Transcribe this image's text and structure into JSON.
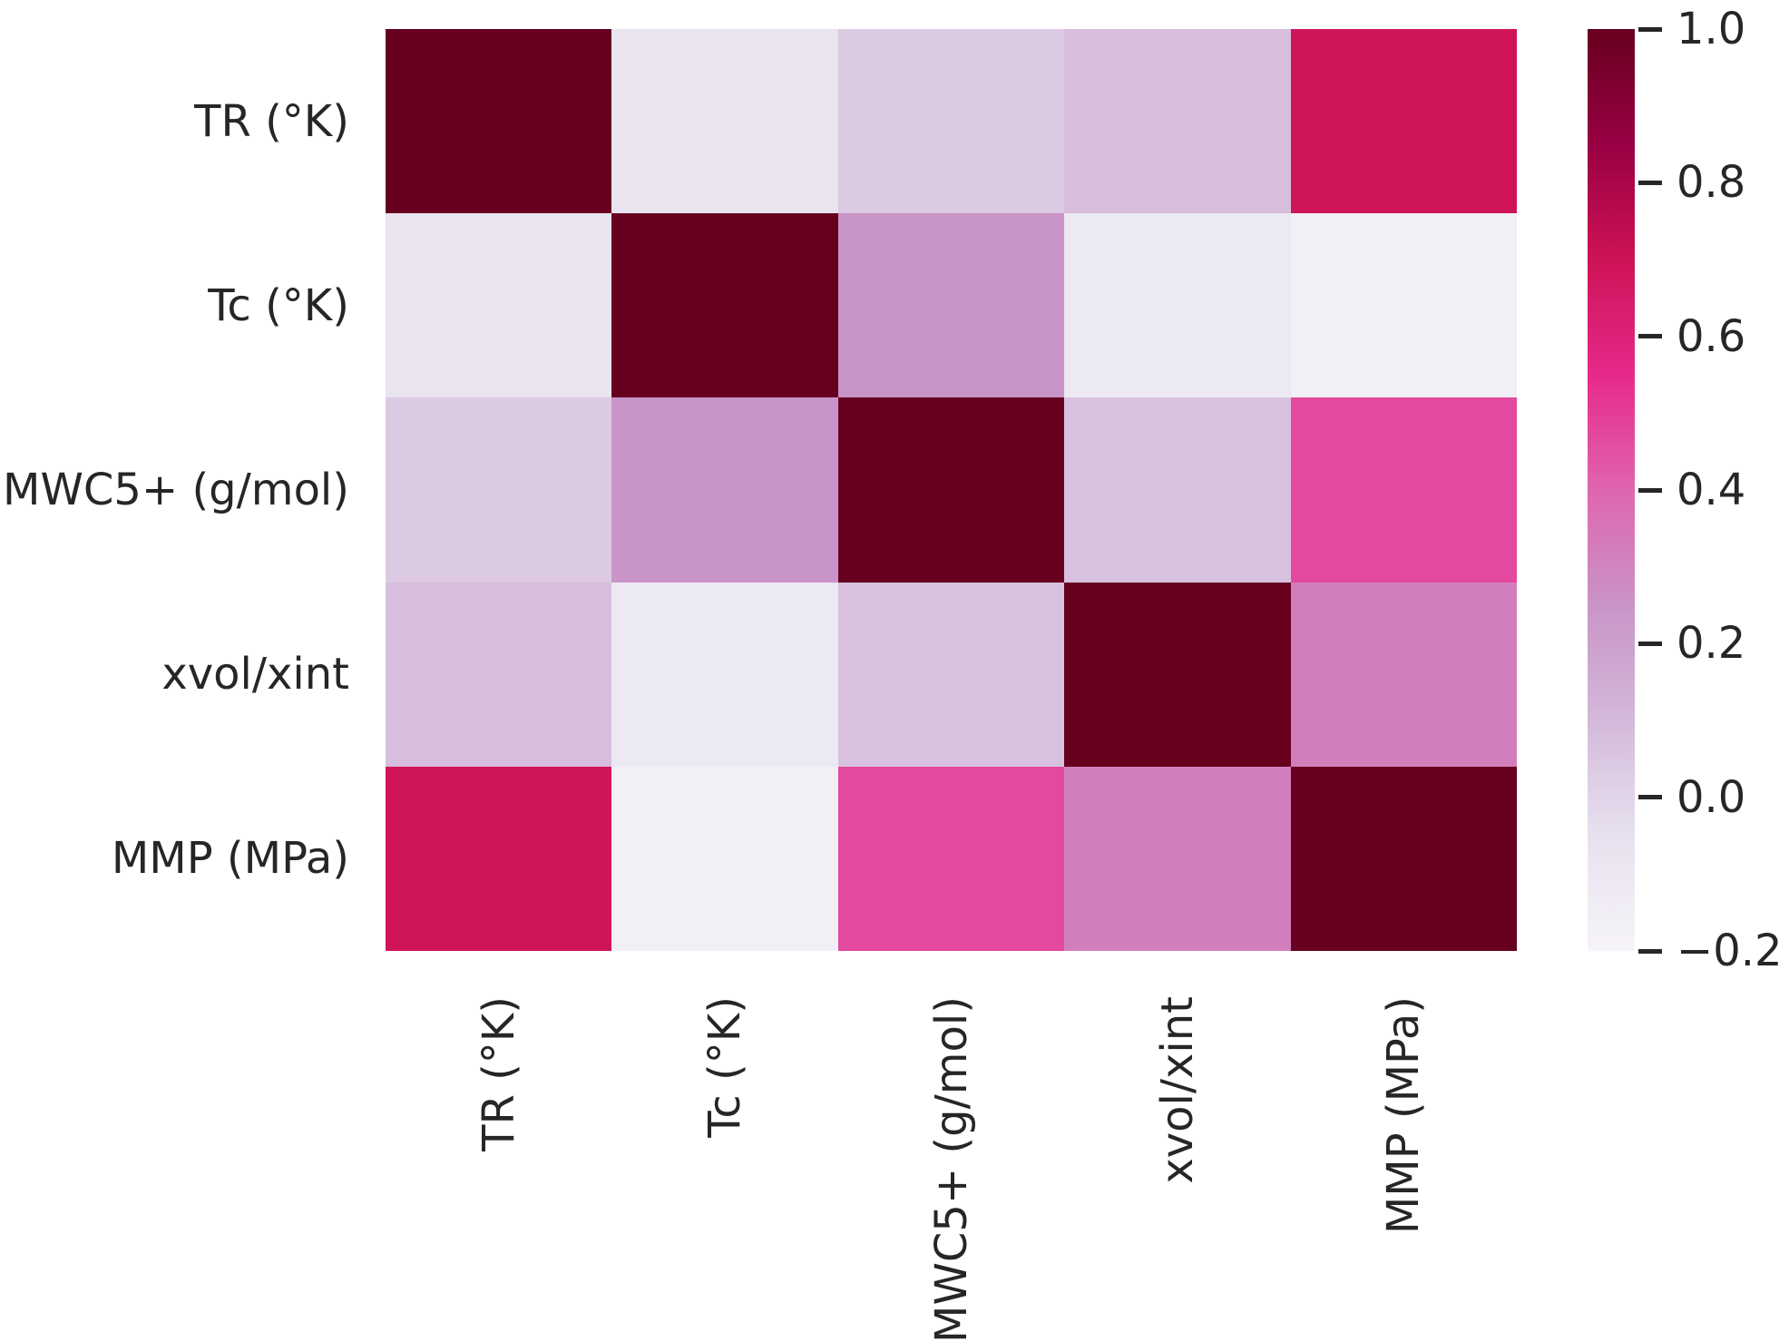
{
  "figure": {
    "background_color": "#ffffff",
    "text_color": "#262626"
  },
  "chart_data": {
    "type": "heatmap",
    "title": "",
    "xlabel": "",
    "ylabel": "",
    "categories": [
      "TR (°K)",
      "Tc (°K)",
      "MWC5+ (g/mol)",
      "xvol/xint",
      "MMP (MPa)"
    ],
    "matrix": [
      [
        1.0,
        -0.07,
        0.04,
        0.08,
        0.69
      ],
      [
        -0.07,
        1.0,
        0.25,
        -0.11,
        -0.16
      ],
      [
        0.04,
        0.25,
        1.0,
        0.07,
        0.47
      ],
      [
        0.08,
        -0.11,
        0.07,
        1.0,
        0.32
      ],
      [
        0.69,
        -0.16,
        0.47,
        0.32,
        1.0
      ]
    ],
    "vmin": -0.2,
    "vmax": 1.0,
    "grid": false,
    "legend_position": "right-colorbar",
    "colorbar": {
      "tick_values": [
        1.0,
        0.8,
        0.6,
        0.4,
        0.2,
        0.0,
        -0.2
      ],
      "tick_labels": [
        "1.0",
        "0.8",
        "0.6",
        "0.4",
        "0.2",
        "0.0",
        "−0.2"
      ]
    },
    "colormap": {
      "name": "PuRd",
      "stops": [
        [
          0.0,
          "#f7f4f9"
        ],
        [
          0.125,
          "#e7e1ef"
        ],
        [
          0.25,
          "#d4b9da"
        ],
        [
          0.375,
          "#c994c7"
        ],
        [
          0.5,
          "#df65b0"
        ],
        [
          0.625,
          "#e7298a"
        ],
        [
          0.75,
          "#ce1256"
        ],
        [
          0.875,
          "#980043"
        ],
        [
          1.0,
          "#67001f"
        ]
      ]
    }
  }
}
